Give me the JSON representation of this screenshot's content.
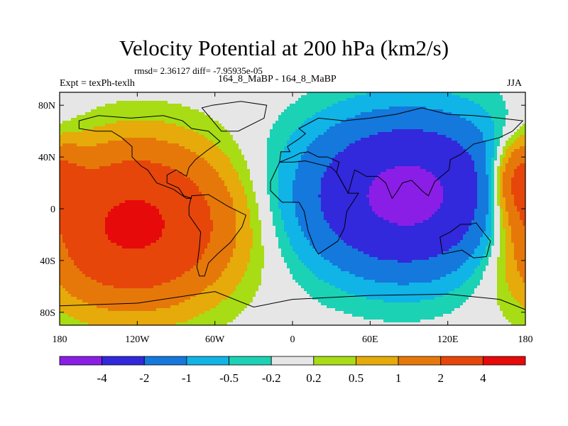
{
  "chart_data": {
    "type": "heatmap",
    "title": "Velocity Potential at 200 hPa (km2/s)",
    "stats": "rmsd= 2.36127 diff= -7.95935e-05",
    "left_label": "Expt = texPh-texlh",
    "center_label": "164_8_MaBP - 164_8_MaBP",
    "right_label": "JJA",
    "projection": "cylindrical equidistant",
    "x_range": [
      -180,
      180
    ],
    "y_range": [
      -90,
      90
    ],
    "x_ticks": [
      {
        "value": -180,
        "label": "180"
      },
      {
        "value": -120,
        "label": "120W"
      },
      {
        "value": -60,
        "label": "60W"
      },
      {
        "value": 0,
        "label": "0"
      },
      {
        "value": 60,
        "label": "60E"
      },
      {
        "value": 120,
        "label": "120E"
      },
      {
        "value": 180,
        "label": "180"
      }
    ],
    "y_ticks": [
      {
        "value": 80,
        "label": "80N"
      },
      {
        "value": 40,
        "label": "40N"
      },
      {
        "value": 0,
        "label": "0"
      },
      {
        "value": -40,
        "label": "40S"
      },
      {
        "value": -80,
        "label": "80S"
      }
    ],
    "contour_levels": [
      -4,
      -2,
      -1,
      -0.5,
      -0.2,
      0.2,
      0.5,
      1,
      2,
      4
    ],
    "level_labels": [
      "-4",
      "-2",
      "-1",
      "-0.5",
      "-0.2",
      "0.2",
      "0.5",
      "1",
      "2",
      "4"
    ],
    "colors": [
      "#8a1ee6",
      "#3228dc",
      "#1478dc",
      "#10b4e6",
      "#1cd2b4",
      "#e6e6e6",
      "#a8dc14",
      "#e6aa0a",
      "#e6780a",
      "#e6460a",
      "#e60a0a"
    ],
    "field_centers": [
      {
        "lon": 90,
        "lat": 10,
        "value": -4.8,
        "spread_lon": 75,
        "spread_lat": 55
      },
      {
        "lon": -125,
        "lat": -12,
        "value": 4.6,
        "spread_lon": 70,
        "spread_lat": 55
      },
      {
        "lon": 175,
        "lat": 22,
        "value": 2.3,
        "spread_lon": 22,
        "spread_lat": 30
      }
    ]
  }
}
